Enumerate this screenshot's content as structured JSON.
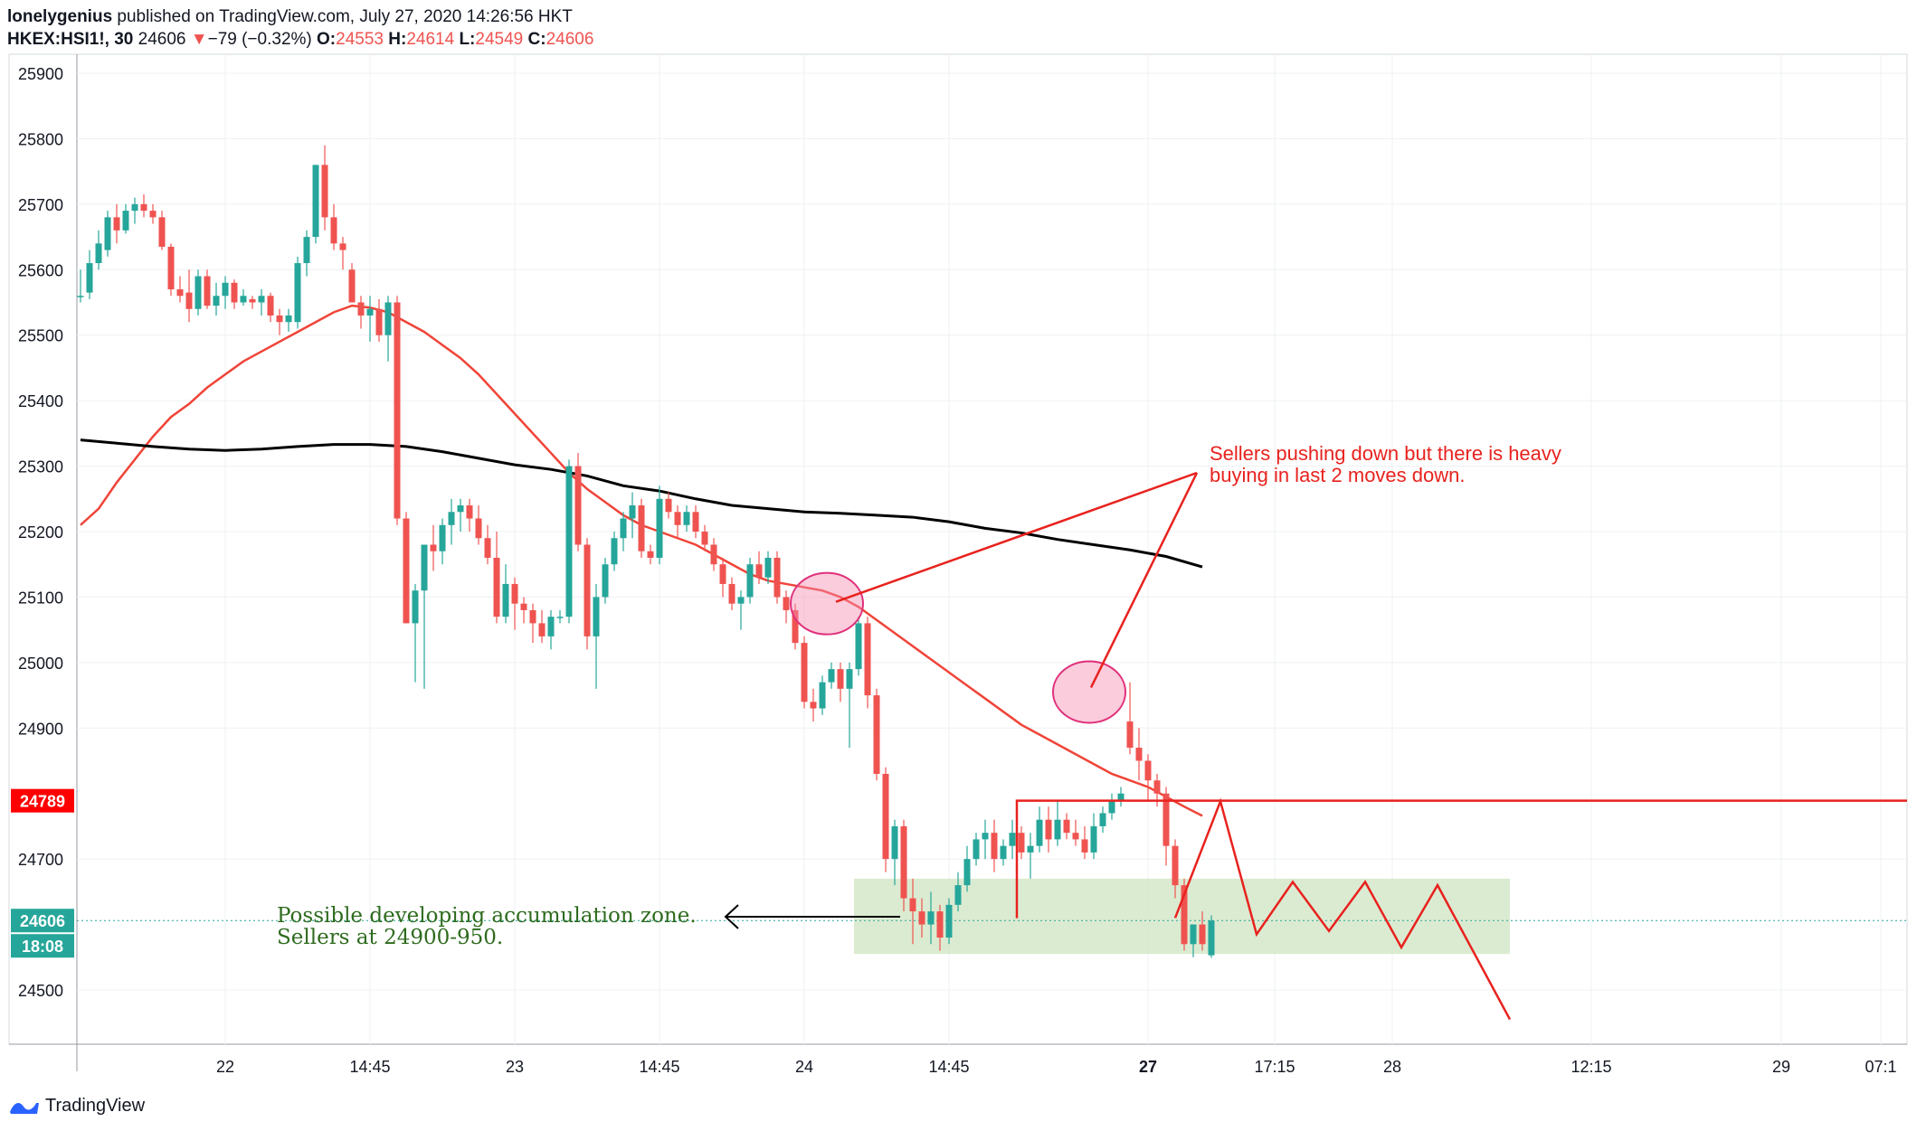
{
  "header": {
    "author": "lonelygenius",
    "published": "published on TradingView.com, July 27, 2020 14:26:56 HKT",
    "symbol": "HKEX:HSI1!, 30",
    "last": "24606",
    "change_arrow": "▼",
    "change": "−79 (−0.32%)",
    "open_label": "O:",
    "open": "24553",
    "high_label": "H:",
    "high": "24614",
    "low_label": "L:",
    "low": "24549",
    "close_label": "C:",
    "close": "24606"
  },
  "footer": {
    "brand": "TradingView",
    "logo_icon": "tradingview-logo-icon"
  },
  "colors": {
    "up": "#26a69a",
    "down": "#ef5350",
    "annotation": "#e8221e",
    "ma_long": "#000000",
    "zone": "#d5e8c9",
    "zone_text": "#2e6b1e"
  },
  "chart_data": {
    "type": "candlestick",
    "timeframe": "30",
    "ylim": [
      24450,
      25940
    ],
    "y_ticks": [
      24500,
      24700,
      24900,
      25000,
      25100,
      25200,
      25300,
      25400,
      25500,
      25600,
      25700,
      25800,
      25900
    ],
    "x_ticks": [
      {
        "label": "22",
        "bar": 16,
        "bold": false
      },
      {
        "label": "14:45",
        "bar": 32,
        "bold": false
      },
      {
        "label": "23",
        "bar": 48,
        "bold": false
      },
      {
        "label": "14:45",
        "bar": 64,
        "bold": false
      },
      {
        "label": "24",
        "bar": 80,
        "bold": false
      },
      {
        "label": "14:45",
        "bar": 96,
        "bold": false
      },
      {
        "label": "27",
        "bar": 118,
        "bold": true
      },
      {
        "label": "17:15",
        "bar": 132,
        "bold": false
      },
      {
        "label": "28",
        "bar": 145,
        "bold": false
      },
      {
        "label": "12:15",
        "bar": 167,
        "bold": false
      },
      {
        "label": "29",
        "bar": 188,
        "bold": false
      },
      {
        "label": "07:1",
        "bar": 199,
        "bold": false
      }
    ],
    "candles": [
      [
        25560,
        25600,
        25550,
        25560
      ],
      [
        25565,
        25630,
        25555,
        25610
      ],
      [
        25610,
        25660,
        25600,
        25640
      ],
      [
        25630,
        25690,
        25620,
        25680
      ],
      [
        25680,
        25700,
        25640,
        25660
      ],
      [
        25660,
        25700,
        25655,
        25690
      ],
      [
        25690,
        25710,
        25670,
        25700
      ],
      [
        25700,
        25715,
        25680,
        25690
      ],
      [
        25690,
        25700,
        25670,
        25680
      ],
      [
        25680,
        25690,
        25630,
        25635
      ],
      [
        25635,
        25640,
        25560,
        25570
      ],
      [
        25570,
        25590,
        25550,
        25560
      ],
      [
        25565,
        25600,
        25520,
        25540
      ],
      [
        25540,
        25600,
        25530,
        25590
      ],
      [
        25590,
        25600,
        25540,
        25545
      ],
      [
        25545,
        25580,
        25530,
        25560
      ],
      [
        25560,
        25590,
        25540,
        25580
      ],
      [
        25580,
        25585,
        25540,
        25550
      ],
      [
        25550,
        25570,
        25545,
        25560
      ],
      [
        25555,
        25560,
        25540,
        25550
      ],
      [
        25550,
        25570,
        25530,
        25560
      ],
      [
        25560,
        25565,
        25520,
        25530
      ],
      [
        25530,
        25540,
        25500,
        25520
      ],
      [
        25520,
        25540,
        25505,
        25530
      ],
      [
        25520,
        25620,
        25510,
        25610
      ],
      [
        25610,
        25660,
        25590,
        25650
      ],
      [
        25650,
        25760,
        25640,
        25760
      ],
      [
        25760,
        25790,
        25660,
        25680
      ],
      [
        25680,
        25700,
        25630,
        25640
      ],
      [
        25640,
        25650,
        25600,
        25630
      ],
      [
        25600,
        25610,
        25550,
        25550
      ],
      [
        25550,
        25560,
        25510,
        25530
      ],
      [
        25530,
        25560,
        25490,
        25540
      ],
      [
        25540,
        25555,
        25490,
        25500
      ],
      [
        25500,
        25560,
        25460,
        25550
      ],
      [
        25550,
        25560,
        25210,
        25220
      ],
      [
        25220,
        25230,
        25060,
        25060
      ],
      [
        25060,
        25120,
        24970,
        25110
      ],
      [
        25110,
        25180,
        24960,
        25180
      ],
      [
        25180,
        25210,
        25140,
        25170
      ],
      [
        25170,
        25220,
        25150,
        25210
      ],
      [
        25210,
        25250,
        25180,
        25230
      ],
      [
        25230,
        25250,
        25200,
        25240
      ],
      [
        25240,
        25250,
        25200,
        25220
      ],
      [
        25220,
        25240,
        25180,
        25190
      ],
      [
        25190,
        25210,
        25150,
        25160
      ],
      [
        25160,
        25200,
        25060,
        25070
      ],
      [
        25070,
        25150,
        25060,
        25120
      ],
      [
        25120,
        25130,
        25050,
        25090
      ],
      [
        25090,
        25100,
        25060,
        25080
      ],
      [
        25080,
        25090,
        25030,
        25060
      ],
      [
        25060,
        25080,
        25030,
        25040
      ],
      [
        25040,
        25080,
        25020,
        25070
      ],
      [
        25070,
        25080,
        25060,
        25070
      ],
      [
        25070,
        25310,
        25060,
        25300
      ],
      [
        25300,
        25320,
        25170,
        25180
      ],
      [
        25180,
        25190,
        25020,
        25040
      ],
      [
        25040,
        25120,
        24960,
        25100
      ],
      [
        25100,
        25160,
        25090,
        25150
      ],
      [
        25150,
        25200,
        25140,
        25190
      ],
      [
        25190,
        25230,
        25170,
        25220
      ],
      [
        25220,
        25260,
        25190,
        25240
      ],
      [
        25240,
        25250,
        25160,
        25170
      ],
      [
        25170,
        25180,
        25150,
        25160
      ],
      [
        25160,
        25270,
        25150,
        25250
      ],
      [
        25250,
        25260,
        25220,
        25230
      ],
      [
        25230,
        25240,
        25190,
        25210
      ],
      [
        25210,
        25240,
        25200,
        25230
      ],
      [
        25230,
        25240,
        25190,
        25200
      ],
      [
        25200,
        25210,
        25170,
        25180
      ],
      [
        25180,
        25190,
        25140,
        25150
      ],
      [
        25150,
        25160,
        25100,
        25120
      ],
      [
        25120,
        25130,
        25080,
        25090
      ],
      [
        25090,
        25110,
        25050,
        25100
      ],
      [
        25100,
        25160,
        25090,
        25150
      ],
      [
        25150,
        25170,
        25120,
        25130
      ],
      [
        25130,
        25170,
        25120,
        25160
      ],
      [
        25160,
        25170,
        25090,
        25100
      ],
      [
        25100,
        25110,
        25060,
        25080
      ],
      [
        25080,
        25090,
        25020,
        25030
      ],
      [
        25030,
        25040,
        24930,
        24940
      ],
      [
        24940,
        24960,
        24910,
        24930
      ],
      [
        24930,
        24980,
        24920,
        24970
      ],
      [
        24970,
        25000,
        24960,
        24990
      ],
      [
        24990,
        25000,
        24940,
        24960
      ],
      [
        24960,
        25000,
        24870,
        24990
      ],
      [
        24990,
        25070,
        24980,
        25060
      ],
      [
        25060,
        25070,
        24930,
        24950
      ],
      [
        24950,
        24960,
        24820,
        24830
      ],
      [
        24830,
        24840,
        24680,
        24700
      ],
      [
        24700,
        24760,
        24660,
        24750
      ],
      [
        24750,
        24760,
        24620,
        24640
      ],
      [
        24640,
        24670,
        24570,
        24620
      ],
      [
        24620,
        24640,
        24580,
        24600
      ],
      [
        24600,
        24650,
        24570,
        24620
      ],
      [
        24620,
        24630,
        24560,
        24580
      ],
      [
        24580,
        24640,
        24570,
        24630
      ],
      [
        24630,
        24680,
        24620,
        24660
      ],
      [
        24660,
        24720,
        24650,
        24700
      ],
      [
        24700,
        24740,
        24690,
        24730
      ],
      [
        24730,
        24760,
        24700,
        24740
      ],
      [
        24740,
        24760,
        24680,
        24700
      ],
      [
        24700,
        24730,
        24690,
        24720
      ],
      [
        24720,
        24760,
        24700,
        24740
      ],
      [
        24740,
        24750,
        24700,
        24710
      ],
      [
        24710,
        24740,
        24670,
        24720
      ],
      [
        24720,
        24780,
        24710,
        24760
      ],
      [
        24760,
        24780,
        24710,
        24730
      ],
      [
        24730,
        24790,
        24720,
        24760
      ],
      [
        24760,
        24770,
        24730,
        24740
      ],
      [
        24740,
        24760,
        24720,
        24730
      ],
      [
        24730,
        24750,
        24700,
        24710
      ],
      [
        24710,
        24770,
        24700,
        24750
      ],
      [
        24750,
        24780,
        24740,
        24770
      ],
      [
        24770,
        24800,
        24760,
        24790
      ],
      [
        24790,
        24810,
        24780,
        24800
      ],
      [
        24910,
        24970,
        24860,
        24870
      ],
      [
        24870,
        24900,
        24820,
        24850
      ],
      [
        24850,
        24860,
        24790,
        24820
      ],
      [
        24820,
        24830,
        24780,
        24800
      ],
      [
        24800,
        24810,
        24690,
        24720
      ],
      [
        24720,
        24730,
        24640,
        24660
      ],
      [
        24660,
        24670,
        24560,
        24570
      ],
      [
        24570,
        24600,
        24550,
        24600
      ],
      [
        24600,
        24620,
        24560,
        24570
      ],
      [
        24553,
        24614,
        24549,
        24606
      ]
    ],
    "ma_short": [
      [
        0,
        25210
      ],
      [
        2,
        25235
      ],
      [
        4,
        25275
      ],
      [
        6,
        25310
      ],
      [
        8,
        25345
      ],
      [
        10,
        25375
      ],
      [
        12,
        25395
      ],
      [
        14,
        25420
      ],
      [
        16,
        25440
      ],
      [
        18,
        25460
      ],
      [
        20,
        25475
      ],
      [
        22,
        25490
      ],
      [
        24,
        25505
      ],
      [
        26,
        25520
      ],
      [
        28,
        25535
      ],
      [
        30,
        25545
      ],
      [
        32,
        25542
      ],
      [
        34,
        25535
      ],
      [
        36,
        25520
      ],
      [
        38,
        25505
      ],
      [
        40,
        25485
      ],
      [
        42,
        25465
      ],
      [
        44,
        25440
      ],
      [
        46,
        25410
      ],
      [
        48,
        25380
      ],
      [
        50,
        25350
      ],
      [
        52,
        25320
      ],
      [
        54,
        25290
      ],
      [
        56,
        25265
      ],
      [
        58,
        25245
      ],
      [
        60,
        25225
      ],
      [
        62,
        25210
      ],
      [
        64,
        25200
      ],
      [
        66,
        25190
      ],
      [
        68,
        25180
      ],
      [
        70,
        25165
      ],
      [
        72,
        25150
      ],
      [
        74,
        25135
      ],
      [
        76,
        25125
      ],
      [
        78,
        25120
      ],
      [
        80,
        25115
      ],
      [
        82,
        25110
      ],
      [
        84,
        25100
      ],
      [
        86,
        25085
      ],
      [
        88,
        25065
      ],
      [
        90,
        25045
      ],
      [
        92,
        25025
      ],
      [
        94,
        25005
      ],
      [
        96,
        24985
      ],
      [
        98,
        24965
      ],
      [
        100,
        24945
      ],
      [
        102,
        24925
      ],
      [
        104,
        24905
      ],
      [
        106,
        24890
      ],
      [
        108,
        24875
      ],
      [
        110,
        24860
      ],
      [
        112,
        24845
      ],
      [
        114,
        24830
      ],
      [
        116,
        24820
      ],
      [
        118,
        24810
      ],
      [
        120,
        24795
      ],
      [
        122,
        24780
      ],
      [
        124,
        24766
      ]
    ],
    "ma_long": [
      [
        0,
        25340
      ],
      [
        4,
        25335
      ],
      [
        8,
        25330
      ],
      [
        12,
        25326
      ],
      [
        16,
        25324
      ],
      [
        20,
        25326
      ],
      [
        24,
        25330
      ],
      [
        28,
        25333
      ],
      [
        32,
        25333
      ],
      [
        36,
        25330
      ],
      [
        40,
        25322
      ],
      [
        44,
        25312
      ],
      [
        48,
        25302
      ],
      [
        52,
        25295
      ],
      [
        56,
        25285
      ],
      [
        60,
        25270
      ],
      [
        64,
        25262
      ],
      [
        68,
        25250
      ],
      [
        72,
        25240
      ],
      [
        76,
        25235
      ],
      [
        80,
        25230
      ],
      [
        84,
        25228
      ],
      [
        88,
        25225
      ],
      [
        92,
        25222
      ],
      [
        96,
        25215
      ],
      [
        100,
        25205
      ],
      [
        104,
        25198
      ],
      [
        108,
        25188
      ],
      [
        112,
        25180
      ],
      [
        116,
        25172
      ],
      [
        120,
        25162
      ],
      [
        124,
        25146
      ]
    ],
    "price_labels": [
      {
        "value": 24789,
        "text": "24789",
        "color": "#ff0000"
      },
      {
        "value": 24606,
        "text": "24606",
        "color": "#26a69a"
      },
      {
        "value": 24566,
        "text": "18:08",
        "color": "#26a69a"
      }
    ],
    "annotations": {
      "sellers_text_line1": "Sellers pushing down but there is heavy",
      "sellers_text_line2": "buying in last 2 moves down.",
      "zone_text_line1": "Possible developing accumulation zone.",
      "zone_text_line2": "Sellers at 24900-950.",
      "resistance_level": 24789,
      "zone": {
        "bar_from": 85.5,
        "bar_to": 158,
        "price_low": 24555,
        "price_high": 24670
      },
      "circles": [
        {
          "bar": 82.5,
          "price": 25090
        },
        {
          "bar": 111.5,
          "price": 24955
        }
      ],
      "projection": [
        [
          121,
          24610
        ],
        [
          126,
          24788
        ],
        [
          130,
          24585
        ],
        [
          134,
          24665
        ],
        [
          138,
          24590
        ],
        [
          142,
          24665
        ],
        [
          146,
          24565
        ],
        [
          150,
          24660
        ],
        [
          158,
          24455
        ]
      ]
    }
  }
}
